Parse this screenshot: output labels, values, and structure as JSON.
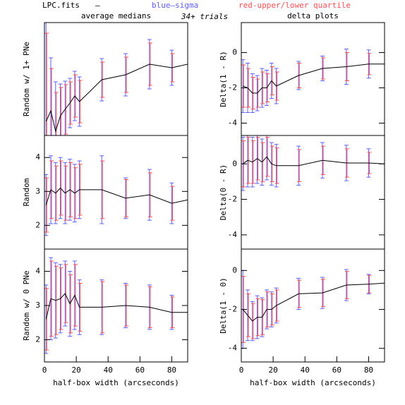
{
  "header": {
    "file": "LPC.fits",
    "dash": "–",
    "blue": "blue–sigma",
    "red": "red-upper/lower quartile",
    "trials": "34+ trials",
    "sigma_color": "#6060ff",
    "quartile_color": "#ff5050"
  },
  "chart_data": [
    {
      "type": "line",
      "title": "average medians",
      "ylabel": "Random w/ 1+ PNe",
      "color": "#000000",
      "x": [
        1,
        4,
        7,
        10,
        13,
        16,
        19,
        22,
        36,
        51,
        66,
        80,
        90
      ],
      "values": [
        0.4,
        0.7,
        0.12,
        0.56,
        0.74,
        0.92,
        1.12,
        0.96,
        1.58,
        1.72,
        2.02,
        1.92,
        2.02
      ],
      "sigma": [
        3,
        1.5,
        1.4,
        0.9,
        0.8,
        0.7,
        0.7,
        0.7,
        0.6,
        0.6,
        0.7,
        0.5,
        null
      ],
      "quartile": [
        2.5,
        1.2,
        1.1,
        0.8,
        0.7,
        0.6,
        0.6,
        0.6,
        0.5,
        0.5,
        0.6,
        0.4,
        null
      ],
      "xlim": [
        0,
        90
      ],
      "ylim": [
        0,
        3.2
      ]
    },
    {
      "type": "line",
      "title": "delta plots",
      "ylabel": "Delta(1 - R)",
      "color": "#000000",
      "x": [
        1,
        4,
        7,
        10,
        13,
        16,
        19,
        22,
        36,
        51,
        66,
        80,
        90
      ],
      "values": [
        -1.9,
        -2.0,
        -2.3,
        -2.3,
        -2.0,
        -2.0,
        -1.6,
        -1.9,
        -1.3,
        -0.9,
        -0.8,
        -0.65,
        -0.65
      ],
      "sigma": [
        1.5,
        1.4,
        1.1,
        1.0,
        1.1,
        1.0,
        1.0,
        1.0,
        0.8,
        0.7,
        1.0,
        0.8,
        null
      ],
      "quartile": [
        1.2,
        1.1,
        0.9,
        0.8,
        0.9,
        0.8,
        0.8,
        0.8,
        0.7,
        0.6,
        0.8,
        0.6,
        null
      ],
      "xlim": [
        0,
        90
      ],
      "ylim": [
        -4.7,
        1.7
      ],
      "yticks": [
        -4,
        -2,
        0
      ]
    },
    {
      "type": "line",
      "ylabel": "Random",
      "color": "#000000",
      "x": [
        1,
        4,
        7,
        10,
        13,
        16,
        19,
        22,
        36,
        51,
        66,
        80,
        90
      ],
      "values": [
        2.6,
        3.05,
        2.95,
        3.1,
        2.95,
        3.05,
        2.95,
        3.05,
        3.05,
        2.8,
        2.9,
        2.65,
        2.75
      ],
      "sigma": [
        0.9,
        1.0,
        0.9,
        0.9,
        0.9,
        0.9,
        0.85,
        0.85,
        1.0,
        0.6,
        0.75,
        0.6,
        null
      ],
      "quartile": [
        0.8,
        0.85,
        0.8,
        0.8,
        0.8,
        0.8,
        0.75,
        0.75,
        0.85,
        0.55,
        0.65,
        0.5,
        null
      ],
      "xlim": [
        0,
        90
      ],
      "ylim": [
        1.3,
        4.65
      ],
      "yticks": [
        2,
        3,
        4
      ]
    },
    {
      "type": "line",
      "ylabel": "Delta(0 - R)",
      "color": "#000000",
      "x": [
        1,
        4,
        7,
        10,
        13,
        16,
        19,
        22,
        36,
        51,
        66,
        80,
        90
      ],
      "values": [
        0,
        0.2,
        0.1,
        0.3,
        0.1,
        0.4,
        0,
        -0.1,
        -0.1,
        0.2,
        0.05,
        0.05,
        0
      ],
      "sigma": [
        1.5,
        1.5,
        1.4,
        1.4,
        1.3,
        1.3,
        1.2,
        1.2,
        1.1,
        1.0,
        1.0,
        0.8,
        null
      ],
      "quartile": [
        1.3,
        1.3,
        1.2,
        1.2,
        1.1,
        1.1,
        1.0,
        1.0,
        0.9,
        0.8,
        0.8,
        0.6,
        null
      ],
      "xlim": [
        0,
        90
      ],
      "ylim": [
        -4.8,
        1.6
      ],
      "yticks": [
        -4,
        -2,
        0
      ]
    },
    {
      "type": "line",
      "ylabel": "Random w/ 0 PNe",
      "xlabel": "half-box width (arcseconds)",
      "color": "#000000",
      "x": [
        1,
        4,
        7,
        10,
        13,
        16,
        19,
        22,
        36,
        51,
        66,
        80,
        90
      ],
      "values": [
        2.6,
        3.2,
        3.15,
        3.2,
        3.35,
        3.05,
        3.3,
        2.95,
        2.95,
        3.0,
        2.95,
        2.8,
        2.8
      ],
      "sigma": [
        1.0,
        1.2,
        1.1,
        1.0,
        0.95,
        0.95,
        1.0,
        0.8,
        0.8,
        0.65,
        0.65,
        0.5,
        null
      ],
      "quartile": [
        0.9,
        1.1,
        1.0,
        0.9,
        0.85,
        0.85,
        0.9,
        0.7,
        0.75,
        0.6,
        0.6,
        0.45,
        null
      ],
      "xlim": [
        0,
        90
      ],
      "ylim": [
        1.35,
        4.65
      ],
      "yticks": [
        2,
        3,
        4
      ],
      "xticks": [
        0,
        20,
        40,
        60,
        80
      ]
    },
    {
      "type": "line",
      "ylabel": "Delta(1 - 0)",
      "xlabel": "half-box width (arcseconds)",
      "color": "#000000",
      "x": [
        1,
        4,
        7,
        10,
        13,
        16,
        19,
        22,
        36,
        51,
        66,
        80,
        90
      ],
      "values": [
        -2.0,
        -2.3,
        -2.6,
        -2.4,
        -2.4,
        -2.0,
        -2.0,
        -1.8,
        -1.2,
        -1.15,
        -0.75,
        -0.7,
        -0.65
      ],
      "sigma": [
        2.0,
        1.3,
        1.0,
        1.1,
        1.0,
        1.0,
        0.9,
        0.9,
        0.8,
        0.8,
        0.8,
        0.5,
        null
      ],
      "quartile": [
        1.7,
        1.1,
        0.9,
        0.95,
        0.9,
        0.9,
        0.8,
        0.8,
        0.7,
        0.7,
        0.7,
        0.45,
        null
      ],
      "xlim": [
        0,
        90
      ],
      "ylim": [
        -4.7,
        1.1
      ],
      "yticks": [
        -4,
        -2,
        0
      ],
      "xticks": [
        0,
        20,
        40,
        60,
        80
      ]
    }
  ]
}
